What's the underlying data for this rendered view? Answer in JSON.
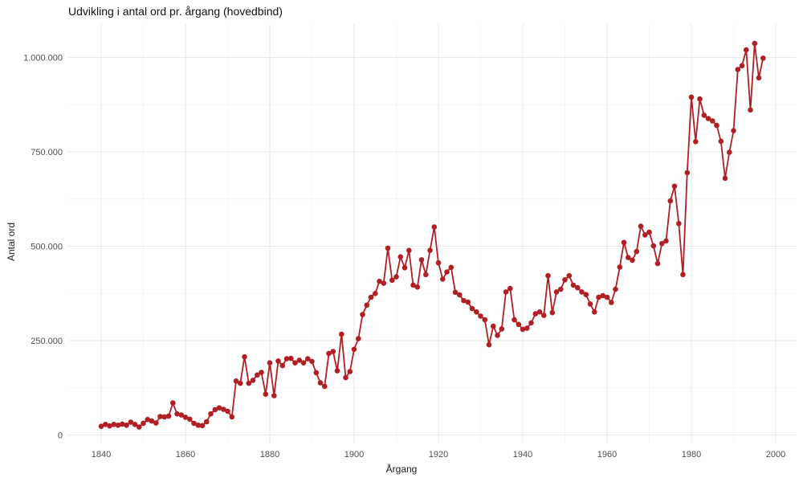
{
  "page": {
    "background": "#ffffff"
  },
  "chart_data": {
    "type": "line",
    "title": "Udvikling i antal ord pr. årgang (hovedbind)",
    "xlabel": "Årgang",
    "ylabel": "Antal ord",
    "legend": "none",
    "grid": "major+minor",
    "series_color": "#B01F24",
    "major_grid_color": "#E8E8E8",
    "minor_grid_color": "#F3F3F3",
    "tick_label_color": "#4d4d4d",
    "x_tick_labels": [
      "1840",
      "1860",
      "1880",
      "1900",
      "1920",
      "1940",
      "1960",
      "1980",
      "2000"
    ],
    "x_ticks": [
      1840,
      1860,
      1880,
      1900,
      1920,
      1940,
      1960,
      1980,
      2000
    ],
    "x_minor_ticks": [
      1850,
      1870,
      1890,
      1910,
      1930,
      1950,
      1970,
      1990
    ],
    "y_tick_labels": [
      "0",
      "250.000",
      "500.000",
      "750.000",
      "1.000.000"
    ],
    "y_ticks": [
      0,
      250000,
      500000,
      750000,
      1000000
    ],
    "y_minor_ticks": [
      125000,
      375000,
      625000,
      875000
    ],
    "xlim": [
      1832,
      2005
    ],
    "ylim": [
      -28000,
      1090000
    ],
    "x_start": 1840,
    "x_step": 1,
    "x": [
      1840,
      1841,
      1842,
      1843,
      1844,
      1845,
      1846,
      1847,
      1848,
      1849,
      1850,
      1851,
      1852,
      1853,
      1854,
      1855,
      1856,
      1857,
      1858,
      1859,
      1860,
      1861,
      1862,
      1863,
      1864,
      1865,
      1866,
      1867,
      1868,
      1869,
      1870,
      1871,
      1872,
      1873,
      1874,
      1875,
      1876,
      1877,
      1878,
      1879,
      1880,
      1881,
      1882,
      1883,
      1884,
      1885,
      1886,
      1887,
      1888,
      1889,
      1890,
      1891,
      1892,
      1893,
      1894,
      1895,
      1896,
      1897,
      1898,
      1899,
      1900,
      1901,
      1902,
      1903,
      1904,
      1905,
      1906,
      1907,
      1908,
      1909,
      1910,
      1911,
      1912,
      1913,
      1914,
      1915,
      1916,
      1917,
      1918,
      1919,
      1920,
      1921,
      1922,
      1923,
      1924,
      1925,
      1926,
      1927,
      1928,
      1929,
      1930,
      1931,
      1932,
      1933,
      1934,
      1935,
      1936,
      1937,
      1938,
      1939,
      1940,
      1941,
      1942,
      1943,
      1944,
      1945,
      1946,
      1947,
      1948,
      1949,
      1950,
      1951,
      1952,
      1953,
      1954,
      1955,
      1956,
      1957,
      1958,
      1959,
      1960,
      1961,
      1962,
      1963,
      1964,
      1965,
      1966,
      1967,
      1968,
      1969,
      1970,
      1971,
      1972,
      1973,
      1974,
      1975,
      1976,
      1977,
      1978,
      1979,
      1980,
      1981,
      1982,
      1983,
      1984,
      1985,
      1986,
      1987,
      1988,
      1989,
      1990,
      1991,
      1992,
      1993,
      1994,
      1995,
      1996,
      1997
    ],
    "values": [
      23000,
      28000,
      24000,
      28000,
      26000,
      29000,
      26000,
      34000,
      28000,
      21000,
      31000,
      41000,
      37000,
      32000,
      49000,
      48000,
      50000,
      85000,
      56000,
      53000,
      47000,
      42000,
      31000,
      26000,
      25000,
      35000,
      56000,
      67000,
      72000,
      68000,
      63000,
      48000,
      143000,
      137000,
      207000,
      137000,
      145000,
      159000,
      166000,
      108000,
      191000,
      104000,
      196000,
      184000,
      202000,
      203000,
      191000,
      198000,
      191000,
      202000,
      195000,
      165000,
      138000,
      129000,
      216000,
      221000,
      170000,
      267000,
      152000,
      168000,
      227000,
      255000,
      319000,
      344000,
      365000,
      375000,
      407000,
      402000,
      495000,
      410000,
      419000,
      472000,
      443000,
      489000,
      397000,
      392000,
      464000,
      425000,
      489000,
      551000,
      456000,
      413000,
      432000,
      444000,
      378000,
      371000,
      356000,
      352000,
      335000,
      326000,
      315000,
      305000,
      239000,
      288000,
      264000,
      281000,
      379000,
      388000,
      305000,
      293000,
      280000,
      283000,
      297000,
      321000,
      326000,
      317000,
      422000,
      324000,
      379000,
      386000,
      411000,
      422000,
      397000,
      390000,
      379000,
      372000,
      347000,
      326000,
      365000,
      369000,
      365000,
      351000,
      386000,
      445000,
      510000,
      470000,
      463000,
      486000,
      553000,
      530000,
      537000,
      501000,
      454000,
      507000,
      514000,
      620000,
      659000,
      560000,
      425000,
      695000,
      895000,
      777000,
      890000,
      847000,
      838000,
      832000,
      820000,
      778000,
      680000,
      749000,
      806000,
      968000,
      978000,
      1020000,
      861000,
      1037000,
      946000,
      998000
    ]
  }
}
